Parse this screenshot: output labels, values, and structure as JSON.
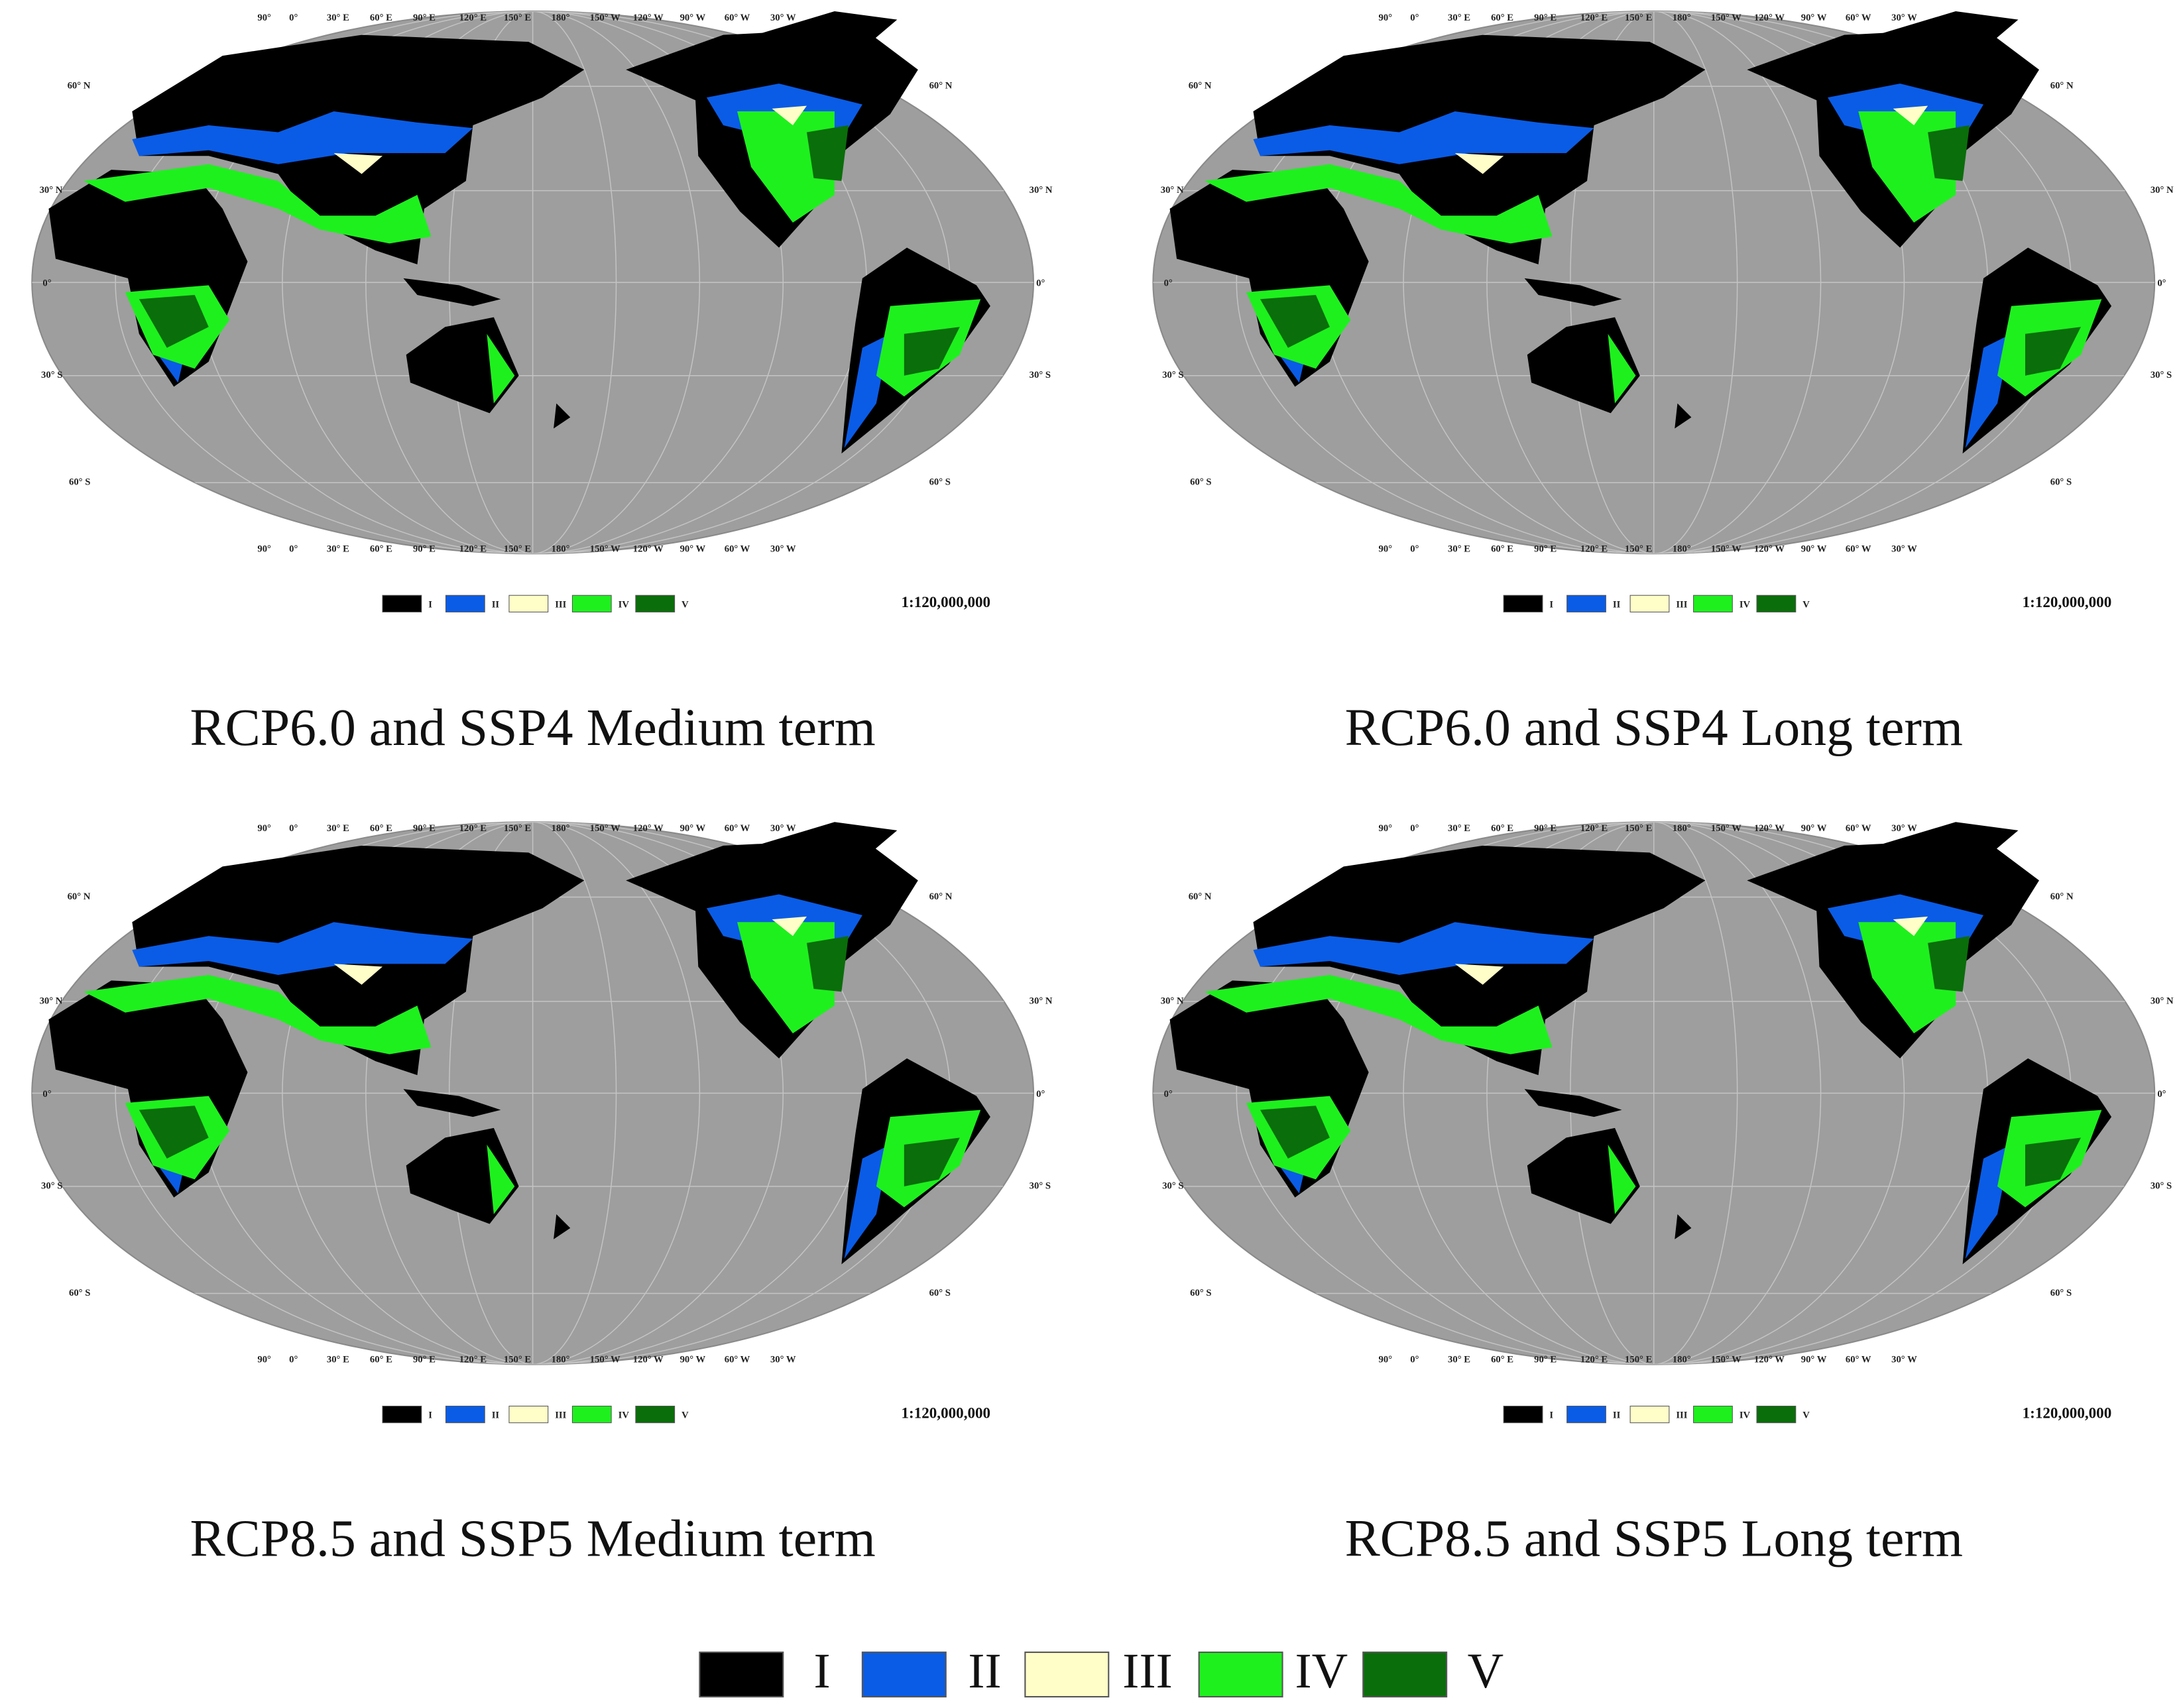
{
  "panels": [
    {
      "title": "RCP6.0 and SSP4 Medium term",
      "scale": "1:120,000,000"
    },
    {
      "title": "RCP6.0 and SSP4 Long term",
      "scale": "1:120,000,000"
    },
    {
      "title": "RCP8.5 and SSP5 Medium term",
      "scale": "1:120,000,000"
    },
    {
      "title": "RCP8.5 and SSP5 Long term",
      "scale": "1:120,000,000"
    }
  ],
  "map": {
    "lon_labels": [
      "90°",
      "0°",
      "30° E",
      "60° E",
      "90° E",
      "120° E",
      "150° E",
      "180°",
      "150° W",
      "120° W",
      "90° W",
      "60° W",
      "30° W"
    ],
    "lat_labels_left": [
      "60° N",
      "30° N",
      "0°",
      "30° S",
      "60° S"
    ],
    "lat_labels_right": [
      "60° N",
      "30° N",
      "0°",
      "30° S",
      "60° S"
    ]
  },
  "legend": {
    "items": [
      {
        "label": "I",
        "color": "#000000"
      },
      {
        "label": "II",
        "color": "#0a5ce6"
      },
      {
        "label": "III",
        "color": "#fffdc8"
      },
      {
        "label": "IV",
        "color": "#1ef01e"
      },
      {
        "label": "V",
        "color": "#0a6e0a"
      }
    ]
  }
}
